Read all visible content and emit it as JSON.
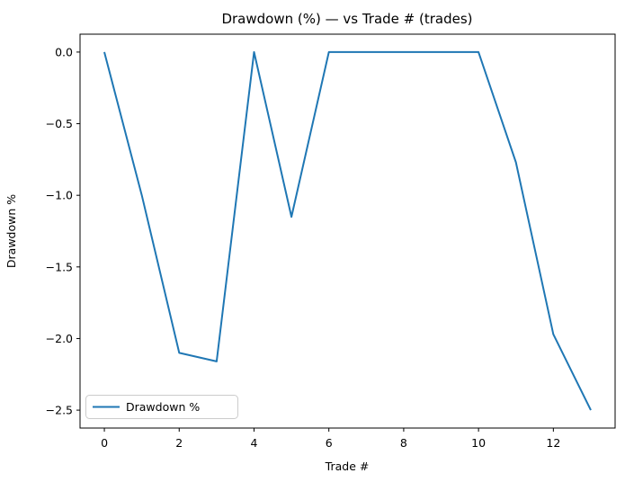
{
  "figure": {
    "background": "#ffffff",
    "spine_color": "#000000",
    "text_color": "#000000"
  },
  "chart_data": {
    "type": "line",
    "title": "Drawdown (%) — vs Trade # (trades)",
    "xlabel": "Trade #",
    "ylabel": "Drawdown %",
    "line_color": "#1f77b4",
    "grid": false,
    "legend_position": "lower left",
    "legend": {
      "label": "Drawdown %"
    },
    "x": [
      0,
      1,
      2,
      3,
      4,
      5,
      6,
      7,
      8,
      9,
      10,
      11,
      12,
      13
    ],
    "series": [
      {
        "name": "Drawdown %",
        "values": [
          0.0,
          -1.0,
          -2.1,
          -2.16,
          0.0,
          -1.15,
          0.0,
          0.0,
          0.0,
          0.0,
          0.0,
          -0.77,
          -1.97,
          -2.5
        ]
      }
    ],
    "xlim": [
      -0.65,
      13.65
    ],
    "ylim": [
      -2.625,
      0.125
    ],
    "x_ticks": [
      {
        "v": 0,
        "label": "0"
      },
      {
        "v": 2,
        "label": "2"
      },
      {
        "v": 4,
        "label": "4"
      },
      {
        "v": 6,
        "label": "6"
      },
      {
        "v": 8,
        "label": "8"
      },
      {
        "v": 10,
        "label": "10"
      },
      {
        "v": 12,
        "label": "12"
      }
    ],
    "y_ticks": [
      {
        "v": 0.0,
        "label": "0.0"
      },
      {
        "v": -0.5,
        "label": "−0.5"
      },
      {
        "v": -1.0,
        "label": "−1.0"
      },
      {
        "v": -1.5,
        "label": "−1.5"
      },
      {
        "v": -2.0,
        "label": "−2.0"
      },
      {
        "v": -2.5,
        "label": "−2.5"
      }
    ]
  }
}
